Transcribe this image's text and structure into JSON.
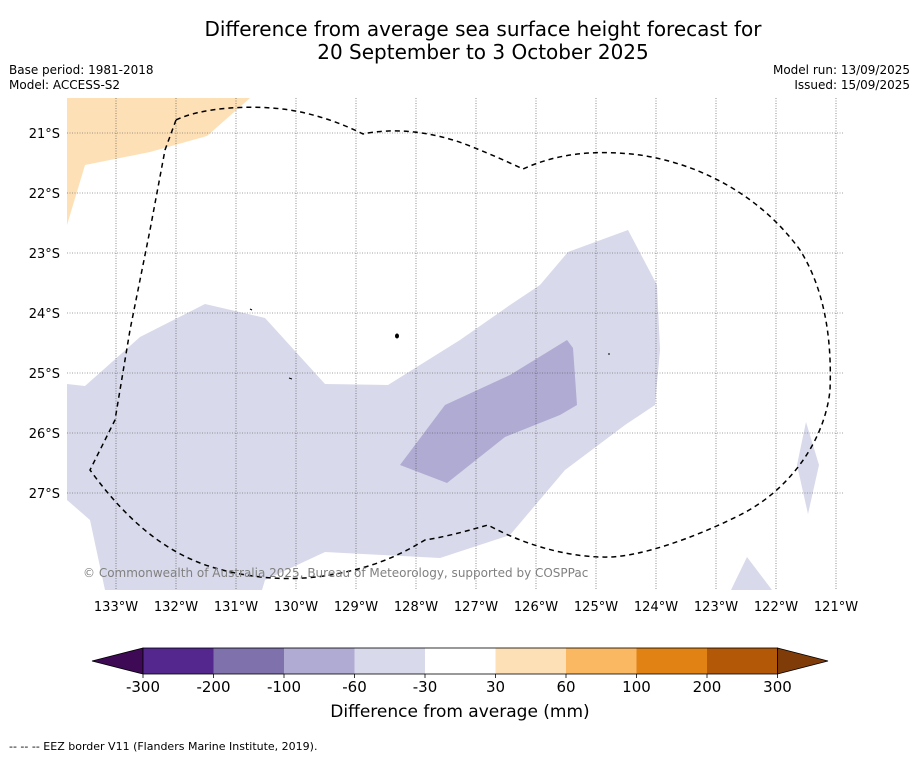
{
  "title": {
    "line1": "Difference from average sea surface height forecast for",
    "line2": "20 September to 3 October 2025"
  },
  "meta_left": {
    "base_period": "Base period: 1981-2018",
    "model": "Model: ACCESS-S2"
  },
  "meta_right": {
    "model_run": "Model run: 13/09/2025",
    "issued": "Issued: 15/09/2025"
  },
  "map": {
    "lat_labels": [
      "21°S",
      "22°S",
      "23°S",
      "24°S",
      "25°S",
      "26°S",
      "27°S"
    ],
    "lon_labels": [
      "133°W",
      "132°W",
      "131°W",
      "130°W",
      "129°W",
      "128°W",
      "127°W",
      "126°W",
      "125°W",
      "124°W",
      "123°W",
      "122°W",
      "121°W"
    ],
    "copyright": "© Commonwealth of Australia 2025, Bureau of Meteorology, supported by COSPPac",
    "colors": {
      "light_orange": "#fde0b6",
      "light_purple": "#d8d9ea",
      "mid_purple": "#b0abd3"
    }
  },
  "colorbar": {
    "tick_labels": [
      "-300",
      "-200",
      "-100",
      "-60",
      "-30",
      "30",
      "60",
      "100",
      "200",
      "300"
    ],
    "bins": [
      "#3f0a55",
      "#54278f",
      "#7e71ac",
      "#b0abd3",
      "#d8d9ea",
      "#ffffff",
      "#fde0b6",
      "#fbb863",
      "#e08214",
      "#b25806",
      "#7f3b08"
    ],
    "title": "Difference from average (mm)"
  },
  "footer": "--  --  -- EEZ border V11 (Flanders Marine Institute, 2019)."
}
